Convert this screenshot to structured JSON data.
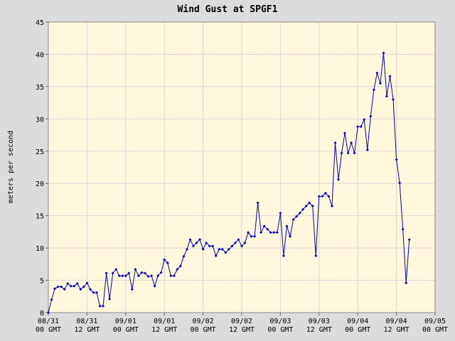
{
  "chart_data": {
    "type": "line",
    "title": "Wind Gust at SPGF1",
    "y_label": "meters per second",
    "x": [
      0,
      1,
      2,
      3,
      4,
      5,
      6,
      7,
      8,
      9,
      10,
      11,
      12,
      13,
      14,
      15,
      16,
      17,
      18,
      19,
      20,
      21,
      22,
      23,
      24,
      25,
      26,
      27,
      28,
      29,
      30,
      31,
      32,
      33,
      34,
      35,
      36,
      37,
      38,
      39,
      40,
      41,
      42,
      43,
      44,
      45,
      46,
      47,
      48,
      49,
      50,
      51,
      52,
      53,
      54,
      55,
      56,
      57,
      58,
      59,
      60,
      61,
      62,
      63,
      64,
      65,
      66,
      67,
      68,
      69,
      70,
      71,
      72,
      73,
      74,
      75,
      76,
      77,
      78,
      79,
      80,
      81,
      82,
      83,
      84,
      85,
      86,
      87,
      88,
      89,
      90,
      91,
      92,
      93,
      94,
      95,
      96,
      97,
      98,
      99,
      100,
      101,
      102,
      103,
      104,
      105,
      106,
      107,
      108,
      109,
      110,
      111,
      112
    ],
    "series": [
      {
        "name": "Wind Gust",
        "color": "#0000cc",
        "values": [
          0,
          2,
          3.7,
          4,
          4,
          3.6,
          4.5,
          4.1,
          4.1,
          4.5,
          3.6,
          4,
          4.6,
          3.6,
          3.1,
          3.1,
          1,
          1,
          6.1,
          2.1,
          6.1,
          6.7,
          5.7,
          5.7,
          5.7,
          6.1,
          3.6,
          6.7,
          5.7,
          6.2,
          6.1,
          5.6,
          5.7,
          4.1,
          5.7,
          6.2,
          8.2,
          7.7,
          5.7,
          5.7,
          6.7,
          7.2,
          8.7,
          9.8,
          11.3,
          10.3,
          10.8,
          11.3,
          9.8,
          10.8,
          10.3,
          10.3,
          8.8,
          9.8,
          9.8,
          9.3,
          9.8,
          10.3,
          10.8,
          11.3,
          10.3,
          10.8,
          12.4,
          11.8,
          11.8,
          17,
          12.4,
          13.4,
          12.9,
          12.4,
          12.4,
          12.4,
          15.4,
          8.8,
          13.4,
          11.8,
          14.4,
          14.9,
          15.4,
          16,
          16.5,
          17,
          16.5,
          8.8,
          18,
          18,
          18.5,
          18,
          16.5,
          26.3,
          20.6,
          24.7,
          27.8,
          24.7,
          26.3,
          24.7,
          28.8,
          28.8,
          29.9,
          25.2,
          30.4,
          34.5,
          37.1,
          35.5,
          40.2,
          33.5,
          36.6,
          33,
          23.7,
          20.1,
          12.9,
          4.6,
          11.3
        ]
      }
    ],
    "xlim": [
      0,
      120
    ],
    "xticks": [
      {
        "value": 0,
        "label": [
          "08/31",
          "00 GMT"
        ]
      },
      {
        "value": 12,
        "label": [
          "08/31",
          "12 GMT"
        ]
      },
      {
        "value": 24,
        "label": [
          "09/01",
          "00 GMT"
        ]
      },
      {
        "value": 36,
        "label": [
          "09/01",
          "12 GMT"
        ]
      },
      {
        "value": 48,
        "label": [
          "09/02",
          "00 GMT"
        ]
      },
      {
        "value": 60,
        "label": [
          "09/02",
          "12 GMT"
        ]
      },
      {
        "value": 72,
        "label": [
          "09/03",
          "00 GMT"
        ]
      },
      {
        "value": 84,
        "label": [
          "09/03",
          "12 GMT"
        ]
      },
      {
        "value": 96,
        "label": [
          "09/04",
          "00 GMT"
        ]
      },
      {
        "value": 108,
        "label": [
          "09/04",
          "12 GMT"
        ]
      },
      {
        "value": 120,
        "label": [
          "09/05",
          "00 GMT"
        ]
      }
    ],
    "ylim": [
      0,
      45
    ],
    "yticks": [
      0,
      5,
      10,
      15,
      20,
      25,
      30,
      35,
      40,
      45
    ],
    "grid": true
  }
}
